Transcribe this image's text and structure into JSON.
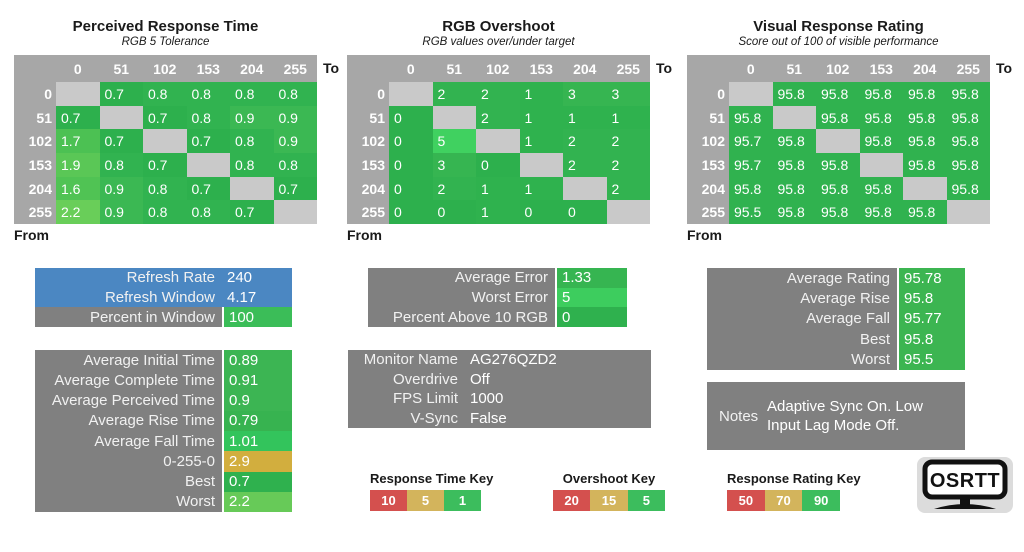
{
  "matrices": [
    {
      "title": "Perceived Response Time",
      "subtitle": "RGB 5 Tolerance",
      "axis_to": "To",
      "axis_from": "From",
      "cols": [
        "0",
        "51",
        "102",
        "153",
        "204",
        "255"
      ],
      "rows": [
        {
          "header": "0",
          "cells": [
            {
              "v": "",
              "c": "diag"
            },
            {
              "v": "0.7",
              "c": "#2db04d"
            },
            {
              "v": "0.8",
              "c": "#31b350"
            },
            {
              "v": "0.8",
              "c": "#31b350"
            },
            {
              "v": "0.8",
              "c": "#31b350"
            },
            {
              "v": "0.8",
              "c": "#31b350"
            }
          ]
        },
        {
          "header": "51",
          "cells": [
            {
              "v": "0.7",
              "c": "#2db04d"
            },
            {
              "v": "",
              "c": "diag"
            },
            {
              "v": "0.7",
              "c": "#2db04d"
            },
            {
              "v": "0.8",
              "c": "#31b350"
            },
            {
              "v": "0.9",
              "c": "#3bb853"
            },
            {
              "v": "0.9",
              "c": "#3bb853"
            }
          ]
        },
        {
          "header": "102",
          "cells": [
            {
              "v": "1.7",
              "c": "#4cc153"
            },
            {
              "v": "0.7",
              "c": "#2db04d"
            },
            {
              "v": "",
              "c": "diag"
            },
            {
              "v": "0.7",
              "c": "#2db04d"
            },
            {
              "v": "0.8",
              "c": "#31b350"
            },
            {
              "v": "0.9",
              "c": "#3bb853"
            }
          ]
        },
        {
          "header": "153",
          "cells": [
            {
              "v": "1.9",
              "c": "#5ac756"
            },
            {
              "v": "0.8",
              "c": "#31b350"
            },
            {
              "v": "0.7",
              "c": "#2db04d"
            },
            {
              "v": "",
              "c": "diag"
            },
            {
              "v": "0.8",
              "c": "#31b350"
            },
            {
              "v": "0.8",
              "c": "#31b350"
            }
          ]
        },
        {
          "header": "204",
          "cells": [
            {
              "v": "1.6",
              "c": "#50c354"
            },
            {
              "v": "0.9",
              "c": "#3bb853"
            },
            {
              "v": "0.8",
              "c": "#31b350"
            },
            {
              "v": "0.7",
              "c": "#2db04d"
            },
            {
              "v": "",
              "c": "diag"
            },
            {
              "v": "0.7",
              "c": "#2db04d"
            }
          ]
        },
        {
          "header": "255",
          "cells": [
            {
              "v": "2.2",
              "c": "#69ce59"
            },
            {
              "v": "0.9",
              "c": "#3bb853"
            },
            {
              "v": "0.8",
              "c": "#31b350"
            },
            {
              "v": "0.8",
              "c": "#31b350"
            },
            {
              "v": "0.7",
              "c": "#2db04d"
            },
            {
              "v": "",
              "c": "diag"
            }
          ]
        }
      ]
    },
    {
      "title": "RGB Overshoot",
      "subtitle": "RGB values over/under target",
      "axis_to": "To",
      "axis_from": "From",
      "cols": [
        "0",
        "51",
        "102",
        "153",
        "204",
        "255"
      ],
      "rows": [
        {
          "header": "0",
          "cells": [
            {
              "v": "",
              "c": "diag"
            },
            {
              "v": "2",
              "c": "#32b350"
            },
            {
              "v": "2",
              "c": "#32b350"
            },
            {
              "v": "1",
              "c": "#2fb24e"
            },
            {
              "v": "3",
              "c": "#36b551"
            },
            {
              "v": "3",
              "c": "#36b551"
            }
          ]
        },
        {
          "header": "51",
          "cells": [
            {
              "v": "0",
              "c": "#2db04d"
            },
            {
              "v": "",
              "c": "diag"
            },
            {
              "v": "2",
              "c": "#32b350"
            },
            {
              "v": "1",
              "c": "#2fb24e"
            },
            {
              "v": "1",
              "c": "#2fb24e"
            },
            {
              "v": "1",
              "c": "#2fb24e"
            }
          ]
        },
        {
          "header": "102",
          "cells": [
            {
              "v": "0",
              "c": "#2db04d"
            },
            {
              "v": "5",
              "c": "#40d160"
            },
            {
              "v": "",
              "c": "diag"
            },
            {
              "v": "1",
              "c": "#2fb24e"
            },
            {
              "v": "2",
              "c": "#32b350"
            },
            {
              "v": "2",
              "c": "#32b350"
            }
          ]
        },
        {
          "header": "153",
          "cells": [
            {
              "v": "0",
              "c": "#2db04d"
            },
            {
              "v": "3",
              "c": "#36b551"
            },
            {
              "v": "0",
              "c": "#2db04d"
            },
            {
              "v": "",
              "c": "diag"
            },
            {
              "v": "2",
              "c": "#32b350"
            },
            {
              "v": "2",
              "c": "#32b350"
            }
          ]
        },
        {
          "header": "204",
          "cells": [
            {
              "v": "0",
              "c": "#2db04d"
            },
            {
              "v": "2",
              "c": "#32b350"
            },
            {
              "v": "1",
              "c": "#2fb24e"
            },
            {
              "v": "1",
              "c": "#2fb24e"
            },
            {
              "v": "",
              "c": "diag"
            },
            {
              "v": "2",
              "c": "#32b350"
            }
          ]
        },
        {
          "header": "255",
          "cells": [
            {
              "v": "0",
              "c": "#2db04d"
            },
            {
              "v": "0",
              "c": "#2db04d"
            },
            {
              "v": "1",
              "c": "#2fb24e"
            },
            {
              "v": "0",
              "c": "#2db04d"
            },
            {
              "v": "0",
              "c": "#2db04d"
            },
            {
              "v": "",
              "c": "diag"
            }
          ]
        }
      ]
    },
    {
      "title": "Visual Response Rating",
      "subtitle": "Score out of 100 of visible performance",
      "axis_to": "To",
      "axis_from": "From",
      "cols": [
        "0",
        "51",
        "102",
        "153",
        "204",
        "255"
      ],
      "rows": [
        {
          "header": "0",
          "cells": [
            {
              "v": "",
              "c": "diag"
            },
            {
              "v": "95.8",
              "c": "#30b24f"
            },
            {
              "v": "95.8",
              "c": "#30b24f"
            },
            {
              "v": "95.8",
              "c": "#30b24f"
            },
            {
              "v": "95.8",
              "c": "#30b24f"
            },
            {
              "v": "95.8",
              "c": "#30b24f"
            }
          ]
        },
        {
          "header": "51",
          "cells": [
            {
              "v": "95.8",
              "c": "#30b24f"
            },
            {
              "v": "",
              "c": "diag"
            },
            {
              "v": "95.8",
              "c": "#30b24f"
            },
            {
              "v": "95.8",
              "c": "#30b24f"
            },
            {
              "v": "95.8",
              "c": "#30b24f"
            },
            {
              "v": "95.8",
              "c": "#30b24f"
            }
          ]
        },
        {
          "header": "102",
          "cells": [
            {
              "v": "95.7",
              "c": "#30b24f"
            },
            {
              "v": "95.8",
              "c": "#30b24f"
            },
            {
              "v": "",
              "c": "diag"
            },
            {
              "v": "95.8",
              "c": "#30b24f"
            },
            {
              "v": "95.8",
              "c": "#30b24f"
            },
            {
              "v": "95.8",
              "c": "#30b24f"
            }
          ]
        },
        {
          "header": "153",
          "cells": [
            {
              "v": "95.7",
              "c": "#30b24f"
            },
            {
              "v": "95.8",
              "c": "#30b24f"
            },
            {
              "v": "95.8",
              "c": "#30b24f"
            },
            {
              "v": "",
              "c": "diag"
            },
            {
              "v": "95.8",
              "c": "#30b24f"
            },
            {
              "v": "95.8",
              "c": "#30b24f"
            }
          ]
        },
        {
          "header": "204",
          "cells": [
            {
              "v": "95.8",
              "c": "#30b24f"
            },
            {
              "v": "95.8",
              "c": "#30b24f"
            },
            {
              "v": "95.8",
              "c": "#30b24f"
            },
            {
              "v": "95.8",
              "c": "#30b24f"
            },
            {
              "v": "",
              "c": "diag"
            },
            {
              "v": "95.8",
              "c": "#30b24f"
            }
          ]
        },
        {
          "header": "255",
          "cells": [
            {
              "v": "95.5",
              "c": "#30b24f"
            },
            {
              "v": "95.8",
              "c": "#30b24f"
            },
            {
              "v": "95.8",
              "c": "#30b24f"
            },
            {
              "v": "95.8",
              "c": "#30b24f"
            },
            {
              "v": "95.8",
              "c": "#30b24f"
            },
            {
              "v": "",
              "c": "diag"
            }
          ]
        }
      ]
    }
  ],
  "boxes": [
    {
      "id": "refresh-box",
      "rows": [
        {
          "label": "Refresh Rate",
          "value": "240",
          "label_bg": "#4b87c2",
          "value_bg": "#4b87c2"
        },
        {
          "label": "Refresh Window",
          "value": "4.17",
          "label_bg": "#4b87c2",
          "value_bg": "#4b87c2"
        },
        {
          "label": "Percent in Window",
          "value": "100",
          "label_bg": "#808080",
          "value_bg": "#3bbd58"
        }
      ]
    },
    {
      "id": "averages-box",
      "rows": [
        {
          "label": "Average Initial Time",
          "value": "0.89",
          "label_bg": "#808080",
          "value_bg": "#3cb553"
        },
        {
          "label": "Average Complete Time",
          "value": "0.91",
          "label_bg": "#808080",
          "value_bg": "#3cb553"
        },
        {
          "label": "Average Perceived Time",
          "value": "0.9",
          "label_bg": "#808080",
          "value_bg": "#3cb553"
        },
        {
          "label": "Average Rise Time",
          "value": "0.79",
          "label_bg": "#808080",
          "value_bg": "#37b350"
        },
        {
          "label": "Average Fall Time",
          "value": "1.01",
          "label_bg": "#808080",
          "value_bg": "#33c45c"
        },
        {
          "label": "0-255-0",
          "value": "2.9",
          "label_bg": "#808080",
          "value_bg": "#d2ae3e"
        },
        {
          "label": "Best",
          "value": "0.7",
          "label_bg": "#808080",
          "value_bg": "#2fb14e"
        },
        {
          "label": "Worst",
          "value": "2.2",
          "label_bg": "#808080",
          "value_bg": "#67ca58"
        }
      ]
    },
    {
      "id": "error-box",
      "rows": [
        {
          "label": "Average Error",
          "value": "1.33",
          "label_bg": "#808080",
          "value_bg": "#36b551"
        },
        {
          "label": "Worst Error",
          "value": "5",
          "label_bg": "#808080",
          "value_bg": "#3dcd5e"
        },
        {
          "label": "Percent Above 10 RGB",
          "value": "0",
          "label_bg": "#808080",
          "value_bg": "#2fb14e"
        }
      ]
    },
    {
      "id": "monitor-box",
      "rows": [
        {
          "label": "Monitor Name",
          "value": "AG276QZD2",
          "label_bg": "#808080",
          "value_bg": null
        },
        {
          "label": "Overdrive",
          "value": "Off",
          "label_bg": "#808080",
          "value_bg": null
        },
        {
          "label": "FPS Limit",
          "value": "1000",
          "label_bg": "#808080",
          "value_bg": null
        },
        {
          "label": "V-Sync",
          "value": "False",
          "label_bg": "#808080",
          "value_bg": null
        }
      ]
    },
    {
      "id": "rating-box",
      "rows": [
        {
          "label": "Average Rating",
          "value": "95.78",
          "label_bg": "#808080",
          "value_bg": "#3cb551"
        },
        {
          "label": "Average Rise",
          "value": "95.8",
          "label_bg": "#808080",
          "value_bg": "#3cb551"
        },
        {
          "label": "Average Fall",
          "value": "95.77",
          "label_bg": "#808080",
          "value_bg": "#3cb551"
        },
        {
          "label": "Best",
          "value": "95.8",
          "label_bg": "#808080",
          "value_bg": "#3cb551"
        },
        {
          "label": "Worst",
          "value": "95.5",
          "label_bg": "#808080",
          "value_bg": "#3cb551"
        }
      ]
    }
  ],
  "notes": {
    "label": "Notes",
    "text": "Adaptive Sync On. Low Input Lag Mode Off."
  },
  "keys": [
    {
      "id": "response-time-key",
      "title": "Response Time Key",
      "swatches": [
        {
          "label": "10",
          "color": "#d4504e"
        },
        {
          "label": "5",
          "color": "#d3b45c"
        },
        {
          "label": "1",
          "color": "#3cbd5d"
        }
      ]
    },
    {
      "id": "overshoot-key",
      "title": "Overshoot Key",
      "swatches": [
        {
          "label": "20",
          "color": "#d4504e"
        },
        {
          "label": "15",
          "color": "#d3b45c"
        },
        {
          "label": "5",
          "color": "#3cbd5d"
        }
      ]
    },
    {
      "id": "response-rating-key",
      "title": "Response Rating Key",
      "swatches": [
        {
          "label": "50",
          "color": "#d4504e"
        },
        {
          "label": "70",
          "color": "#d3b45c"
        },
        {
          "label": "90",
          "color": "#3cbd5d"
        }
      ]
    }
  ],
  "logo": {
    "text": "OSRTT"
  },
  "chart_data": [
    {
      "type": "heatmap",
      "title": "Perceived Response Time",
      "subtitle": "RGB 5 Tolerance",
      "x_label": "To",
      "y_label": "From",
      "categories": [
        0,
        51,
        102,
        153,
        204,
        255
      ],
      "values": [
        [
          null,
          0.7,
          0.8,
          0.8,
          0.8,
          0.8
        ],
        [
          0.7,
          null,
          0.7,
          0.8,
          0.9,
          0.9
        ],
        [
          1.7,
          0.7,
          null,
          0.7,
          0.8,
          0.9
        ],
        [
          1.9,
          0.8,
          0.7,
          null,
          0.8,
          0.8
        ],
        [
          1.6,
          0.9,
          0.8,
          0.7,
          null,
          0.7
        ],
        [
          2.2,
          0.9,
          0.8,
          0.8,
          0.7,
          null
        ]
      ],
      "color_key": {
        "red": 10,
        "yellow": 5,
        "green": 1
      }
    },
    {
      "type": "heatmap",
      "title": "RGB Overshoot",
      "subtitle": "RGB values over/under target",
      "x_label": "To",
      "y_label": "From",
      "categories": [
        0,
        51,
        102,
        153,
        204,
        255
      ],
      "values": [
        [
          null,
          2,
          2,
          1,
          3,
          3
        ],
        [
          0,
          null,
          2,
          1,
          1,
          1
        ],
        [
          0,
          5,
          null,
          1,
          2,
          2
        ],
        [
          0,
          3,
          0,
          null,
          2,
          2
        ],
        [
          0,
          2,
          1,
          1,
          null,
          2
        ],
        [
          0,
          0,
          1,
          0,
          0,
          null
        ]
      ],
      "color_key": {
        "red": 20,
        "yellow": 15,
        "green": 5
      }
    },
    {
      "type": "heatmap",
      "title": "Visual Response Rating",
      "subtitle": "Score out of 100 of visible performance",
      "x_label": "To",
      "y_label": "From",
      "categories": [
        0,
        51,
        102,
        153,
        204,
        255
      ],
      "values": [
        [
          null,
          95.8,
          95.8,
          95.8,
          95.8,
          95.8
        ],
        [
          95.8,
          null,
          95.8,
          95.8,
          95.8,
          95.8
        ],
        [
          95.7,
          95.8,
          null,
          95.8,
          95.8,
          95.8
        ],
        [
          95.7,
          95.8,
          95.8,
          null,
          95.8,
          95.8
        ],
        [
          95.8,
          95.8,
          95.8,
          95.8,
          null,
          95.8
        ],
        [
          95.5,
          95.8,
          95.8,
          95.8,
          95.8,
          null
        ]
      ],
      "color_key": {
        "red": 50,
        "yellow": 70,
        "green": 90
      }
    }
  ]
}
